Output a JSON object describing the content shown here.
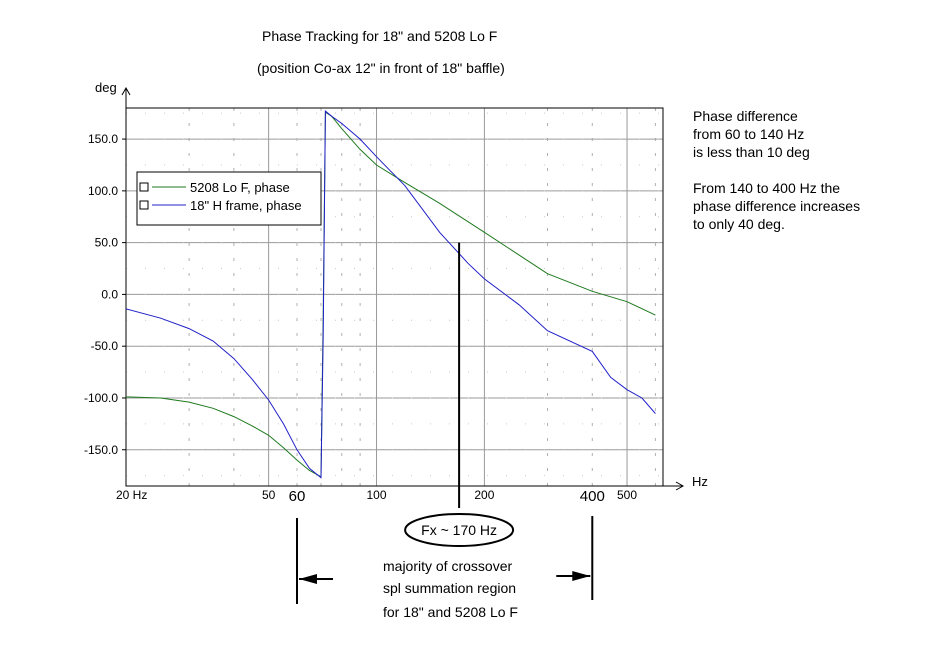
{
  "chart_data": {
    "type": "line",
    "title": "Phase Tracking for 18\" and 5208 Lo F",
    "subtitle": "(position Co-ax 12\" in front of 18\" baffle)",
    "ylabel": "deg",
    "xlabel": "Hz",
    "x_scale": "log",
    "xlim": [
      20,
      630
    ],
    "ylim": [
      -185,
      180
    ],
    "grid": true,
    "y_ticks": [
      150,
      100,
      50,
      0,
      -50,
      -100,
      -150
    ],
    "y_tick_labels": [
      "150.0",
      "100.0",
      "50.0",
      "0.0",
      "-50.0",
      "-100.0",
      "-150.0"
    ],
    "x_tick_labels": [
      {
        "x": 20,
        "label": "20 Hz"
      },
      {
        "x": 50,
        "label": "50"
      },
      {
        "x": 100,
        "label": "100"
      },
      {
        "x": 200,
        "label": "200"
      },
      {
        "x": 500,
        "label": "500"
      }
    ],
    "x_marked_labels": [
      {
        "x": 60,
        "label": "60"
      },
      {
        "x": 400,
        "label": "400"
      }
    ],
    "legend": {
      "placement": "top-left",
      "entries": [
        "5208 Lo F, phase",
        "18\" H frame, phase"
      ]
    },
    "series": [
      {
        "name": "5208 Lo F, phase",
        "color": "#1e7a1e",
        "x": [
          20,
          25,
          30,
          35,
          40,
          45,
          50,
          55,
          60,
          65,
          70,
          71,
          72,
          75,
          80,
          90,
          100,
          120,
          150,
          200,
          250,
          300,
          400,
          500,
          600
        ],
        "y": [
          -99,
          -100,
          -104,
          -110,
          -118,
          -127,
          -136,
          -148,
          -160,
          -170,
          -176,
          -20,
          176,
          172,
          160,
          140,
          125,
          108,
          88,
          60,
          38,
          20,
          3,
          -7,
          -20
        ]
      },
      {
        "name": "18\" H frame, phase",
        "color": "#2020c8",
        "x": [
          20,
          25,
          30,
          35,
          40,
          45,
          50,
          55,
          60,
          65,
          70,
          71,
          72,
          75,
          80,
          90,
          100,
          120,
          150,
          180,
          200,
          250,
          300,
          400,
          450,
          500,
          550,
          600
        ],
        "y": [
          -14,
          -23,
          -33,
          -45,
          -62,
          -82,
          -102,
          -125,
          -150,
          -168,
          -177,
          -40,
          177,
          172,
          165,
          150,
          133,
          105,
          60,
          30,
          15,
          -10,
          -35,
          -55,
          -80,
          -92,
          -100,
          -115
        ]
      }
    ],
    "annotations": {
      "fx_label": "Fx ~ 170 Hz",
      "fx_x": 170,
      "region_text": [
        "majority of  crossover",
        "spl  summation  region",
        "for 18\" and 5208 Lo F"
      ],
      "region_start_x": 60,
      "region_end_x": 400,
      "note1": [
        "Phase difference",
        "from 60 to 140 Hz",
        "is less than 10 deg"
      ],
      "note2": [
        "From 140 to 400 Hz the",
        "phase difference increases",
        "to only 40 deg."
      ]
    }
  }
}
